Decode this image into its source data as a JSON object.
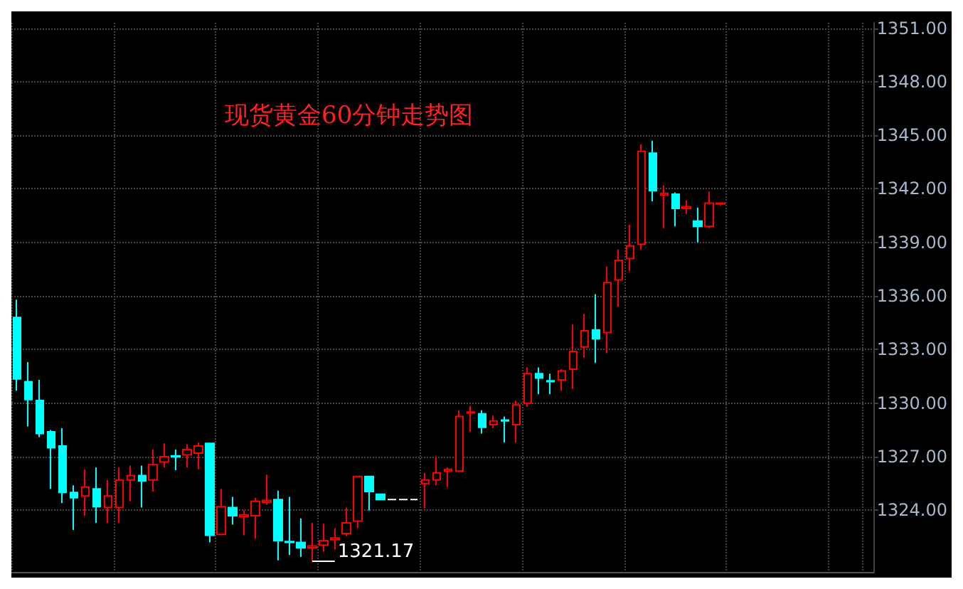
{
  "chart_data": {
    "type": "candlestick",
    "title": "现货黄金60分钟走势图",
    "categories": [
      null,
      null,
      null,
      null,
      null,
      null,
      null,
      null,
      null,
      null,
      null,
      null,
      null,
      null,
      null,
      null,
      null,
      null,
      null,
      null,
      null,
      null,
      null,
      null,
      null,
      null,
      null,
      null,
      null,
      null,
      null,
      null,
      null,
      null,
      null,
      null,
      null,
      null,
      null,
      null,
      null,
      null,
      null,
      null,
      null,
      null,
      null,
      null,
      null,
      null,
      null,
      null,
      null,
      null,
      null,
      null,
      null,
      null,
      null,
      null,
      null,
      null,
      null,
      null,
      null,
      null,
      null,
      null,
      null,
      null,
      null,
      null,
      null,
      null,
      null,
      null
    ],
    "ohlc": [
      [
        1334.8,
        1335.8,
        1330.7,
        1331.35
      ],
      [
        1331.2,
        1332.3,
        1328.7,
        1330.2
      ],
      [
        1330.15,
        1331.3,
        1328.1,
        1328.3
      ],
      [
        1328.4,
        1328.5,
        1325.2,
        1327.5
      ],
      [
        1327.6,
        1328.6,
        1324.4,
        1325.0
      ],
      [
        1325.0,
        1325.4,
        1322.9,
        1324.7
      ],
      [
        1324.8,
        1326.3,
        1323.7,
        1325.3
      ],
      [
        1325.2,
        1326.4,
        1323.3,
        1324.2
      ],
      [
        1324.15,
        1325.7,
        1323.3,
        1324.8
      ],
      [
        1324.15,
        1326.4,
        1323.3,
        1325.7
      ],
      [
        1325.7,
        1326.5,
        1324.5,
        1325.95
      ],
      [
        1325.95,
        1326.5,
        1324.15,
        1325.65
      ],
      [
        1325.7,
        1327.4,
        1325.05,
        1326.55
      ],
      [
        1326.7,
        1327.75,
        1326.4,
        1327.0
      ],
      [
        1327.05,
        1327.4,
        1326.25,
        1327.0
      ],
      [
        1327.1,
        1327.7,
        1326.4,
        1327.4
      ],
      [
        1327.2,
        1327.8,
        1326.3,
        1327.6
      ],
      [
        1327.75,
        1327.75,
        1322.2,
        1322.6
      ],
      [
        1322.65,
        1325.2,
        1322.6,
        1324.2
      ],
      [
        1324.15,
        1324.75,
        1323.2,
        1323.7
      ],
      [
        1323.65,
        1324.0,
        1322.6,
        1323.75
      ],
      [
        1323.7,
        1324.7,
        1322.4,
        1324.5
      ],
      [
        1324.45,
        1326.0,
        1324.3,
        1324.55
      ],
      [
        1324.6,
        1325.1,
        1321.2,
        1322.3
      ],
      [
        1322.25,
        1324.75,
        1321.5,
        1322.2
      ],
      [
        1322.2,
        1323.55,
        1321.4,
        1321.9
      ],
      [
        1321.9,
        1323.3,
        1321.17,
        1322.0
      ],
      [
        1322.05,
        1323.25,
        1321.7,
        1322.3
      ],
      [
        1322.35,
        1323.0,
        1321.8,
        1322.45
      ],
      [
        1322.7,
        1324.15,
        1322.55,
        1323.3
      ],
      [
        1323.4,
        1325.9,
        1323.0,
        1325.9
      ],
      [
        1325.9,
        1325.9,
        1324.0,
        1325.05
      ],
      [
        1324.9,
        1324.9,
        1324.6,
        1324.6
      ],
      [
        1324.6,
        1324.6,
        1324.6,
        1324.6
      ],
      [
        1324.6,
        1324.6,
        1324.6,
        1324.6
      ],
      [
        1324.6,
        1324.6,
        1324.6,
        1324.6
      ],
      [
        1325.5,
        1326.1,
        1324.1,
        1325.7
      ],
      [
        1325.7,
        1327.0,
        1325.4,
        1326.1
      ],
      [
        1326.2,
        1326.4,
        1325.3,
        1326.3
      ],
      [
        1326.2,
        1329.6,
        1326.2,
        1329.25
      ],
      [
        1329.45,
        1329.85,
        1328.4,
        1329.5
      ],
      [
        1329.4,
        1329.6,
        1328.3,
        1328.65
      ],
      [
        1328.8,
        1329.3,
        1328.6,
        1329.0
      ],
      [
        1329.05,
        1329.25,
        1327.8,
        1329.0
      ],
      [
        1328.8,
        1330.15,
        1327.8,
        1329.9
      ],
      [
        1330.0,
        1332.0,
        1329.8,
        1331.65
      ],
      [
        1331.65,
        1332.0,
        1330.5,
        1331.4
      ],
      [
        1331.25,
        1331.65,
        1330.5,
        1331.2
      ],
      [
        1331.3,
        1331.9,
        1330.7,
        1331.8
      ],
      [
        1331.9,
        1334.4,
        1330.8,
        1332.9
      ],
      [
        1333.15,
        1335.0,
        1332.55,
        1334.05
      ],
      [
        1334.1,
        1336.1,
        1332.25,
        1333.6
      ],
      [
        1333.95,
        1337.65,
        1332.8,
        1336.75
      ],
      [
        1336.9,
        1338.6,
        1335.4,
        1338.0
      ],
      [
        1338.1,
        1340.0,
        1337.4,
        1338.8
      ],
      [
        1338.9,
        1344.5,
        1338.6,
        1344.1
      ],
      [
        1344.0,
        1344.7,
        1341.3,
        1341.9
      ],
      [
        1341.65,
        1342.2,
        1339.8,
        1341.75
      ],
      [
        1341.7,
        1341.8,
        1339.9,
        1340.9
      ],
      [
        1340.9,
        1341.35,
        1340.6,
        1341.0
      ],
      [
        1340.2,
        1340.95,
        1339.0,
        1339.9
      ],
      [
        1339.9,
        1341.85,
        1339.8,
        1341.2
      ],
      [
        1341.15,
        1341.2,
        1341.05,
        1341.2
      ],
      null,
      null,
      null,
      null,
      null,
      null,
      null,
      null,
      null,
      null,
      null,
      null,
      null
    ],
    "colors": [
      "#00ffff",
      "#00ffff",
      "#00ffff",
      "#00ffff",
      "#00ffff",
      "#00ffff",
      "#ff0000",
      "#00ffff",
      "#ff0000",
      "#ff0000",
      "#ff0000",
      "#00ffff",
      "#ff0000",
      "#ff0000",
      "#00ffff",
      "#ff0000",
      "#ff0000",
      "#00ffff",
      "#ff0000",
      "#00ffff",
      "#ff0000",
      "#ff0000",
      "#ff0000",
      "#00ffff",
      "#00ffff",
      "#00ffff",
      "#ff0000",
      "#ff0000",
      "#ff0000",
      "#ff0000",
      "#ff0000",
      "#00ffff",
      "#00ffff",
      "#ffffff",
      "#ffffff",
      "#ffffff",
      "#ff0000",
      "#ff0000",
      "#ff0000",
      "#ff0000",
      "#ff0000",
      "#00ffff",
      "#ff0000",
      "#00ffff",
      "#ff0000",
      "#ff0000",
      "#00ffff",
      "#00ffff",
      "#ff0000",
      "#ff0000",
      "#ff0000",
      "#00ffff",
      "#ff0000",
      "#ff0000",
      "#ff0000",
      "#ff0000",
      "#00ffff",
      "#ff0000",
      "#00ffff",
      "#ff0000",
      "#00ffff",
      "#ff0000",
      "#ff0000",
      null,
      null,
      null,
      null,
      null,
      null,
      null,
      null,
      null,
      null,
      null,
      null,
      null
    ],
    "ref_lines": [
      {
        "axis": "y",
        "value": 1321.17,
        "label": "1321.17",
        "color": "#ffffff"
      }
    ],
    "ylim": [
      1320.55,
      1351.3
    ],
    "yticks": [
      {
        "value": 1324,
        "label": "1324.00"
      },
      {
        "value": 1327,
        "label": "1327.00"
      },
      {
        "value": 1330,
        "label": "1330.00"
      },
      {
        "value": 1333,
        "label": "1333.00"
      },
      {
        "value": 1336,
        "label": "1336.00"
      },
      {
        "value": 1339,
        "label": "1339.00"
      },
      {
        "value": 1342,
        "label": "1342.00"
      },
      {
        "value": 1345,
        "label": "1345.00"
      },
      {
        "value": 1348,
        "label": "1348.00"
      },
      {
        "value": 1351,
        "label": "1351.00"
      }
    ],
    "grid": true,
    "tick_labels": "y"
  }
}
